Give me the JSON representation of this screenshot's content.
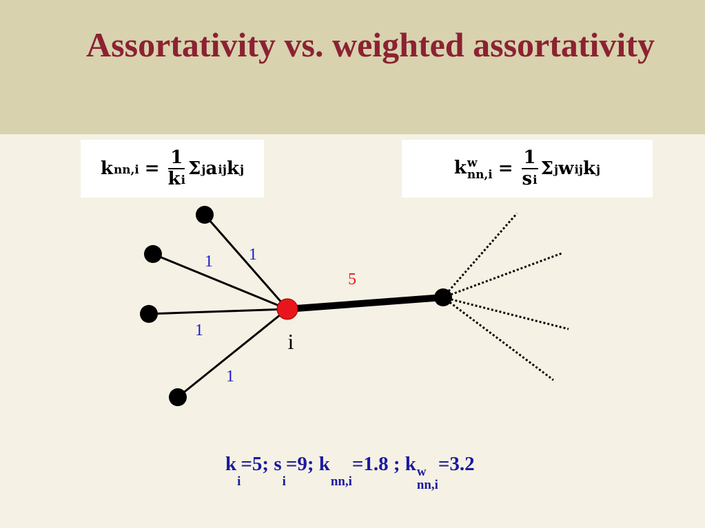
{
  "title": "Assortativity vs. weighted assortativity",
  "formula_left": {
    "lhs": {
      "base": "k",
      "sub": "nn,i"
    },
    "eq": "=",
    "numerator": "1",
    "denominator": {
      "base": "k",
      "sub": "i"
    },
    "terms": [
      {
        "base": "Σ",
        "sub": "j"
      },
      {
        "base": "a",
        "sub": "ij"
      },
      {
        "base": "k",
        "sub": "j"
      }
    ]
  },
  "formula_right": {
    "lhs": {
      "base": "k",
      "sub": "nn,i",
      "sup": "w"
    },
    "eq": "=",
    "numerator": "1",
    "denominator": {
      "base": "s",
      "sub": "i"
    },
    "terms": [
      {
        "base": "Σ",
        "sub": "j"
      },
      {
        "base": "w",
        "sub": "ij"
      },
      {
        "base": "k",
        "sub": "j"
      }
    ]
  },
  "diagram": {
    "node_label": "i",
    "edge_labels": [
      "1",
      "1",
      "1",
      "1",
      "5"
    ]
  },
  "summary": [
    {
      "base": "k",
      "sub": "i"
    },
    {
      "base": "=5; s",
      "sub": "i"
    },
    {
      "base": "=9; k",
      "sub": "nn,i"
    },
    {
      "base": "=1.8 ; k",
      "sub": "nn,i",
      "sup": "w"
    },
    {
      "base": "=3.2"
    }
  ]
}
